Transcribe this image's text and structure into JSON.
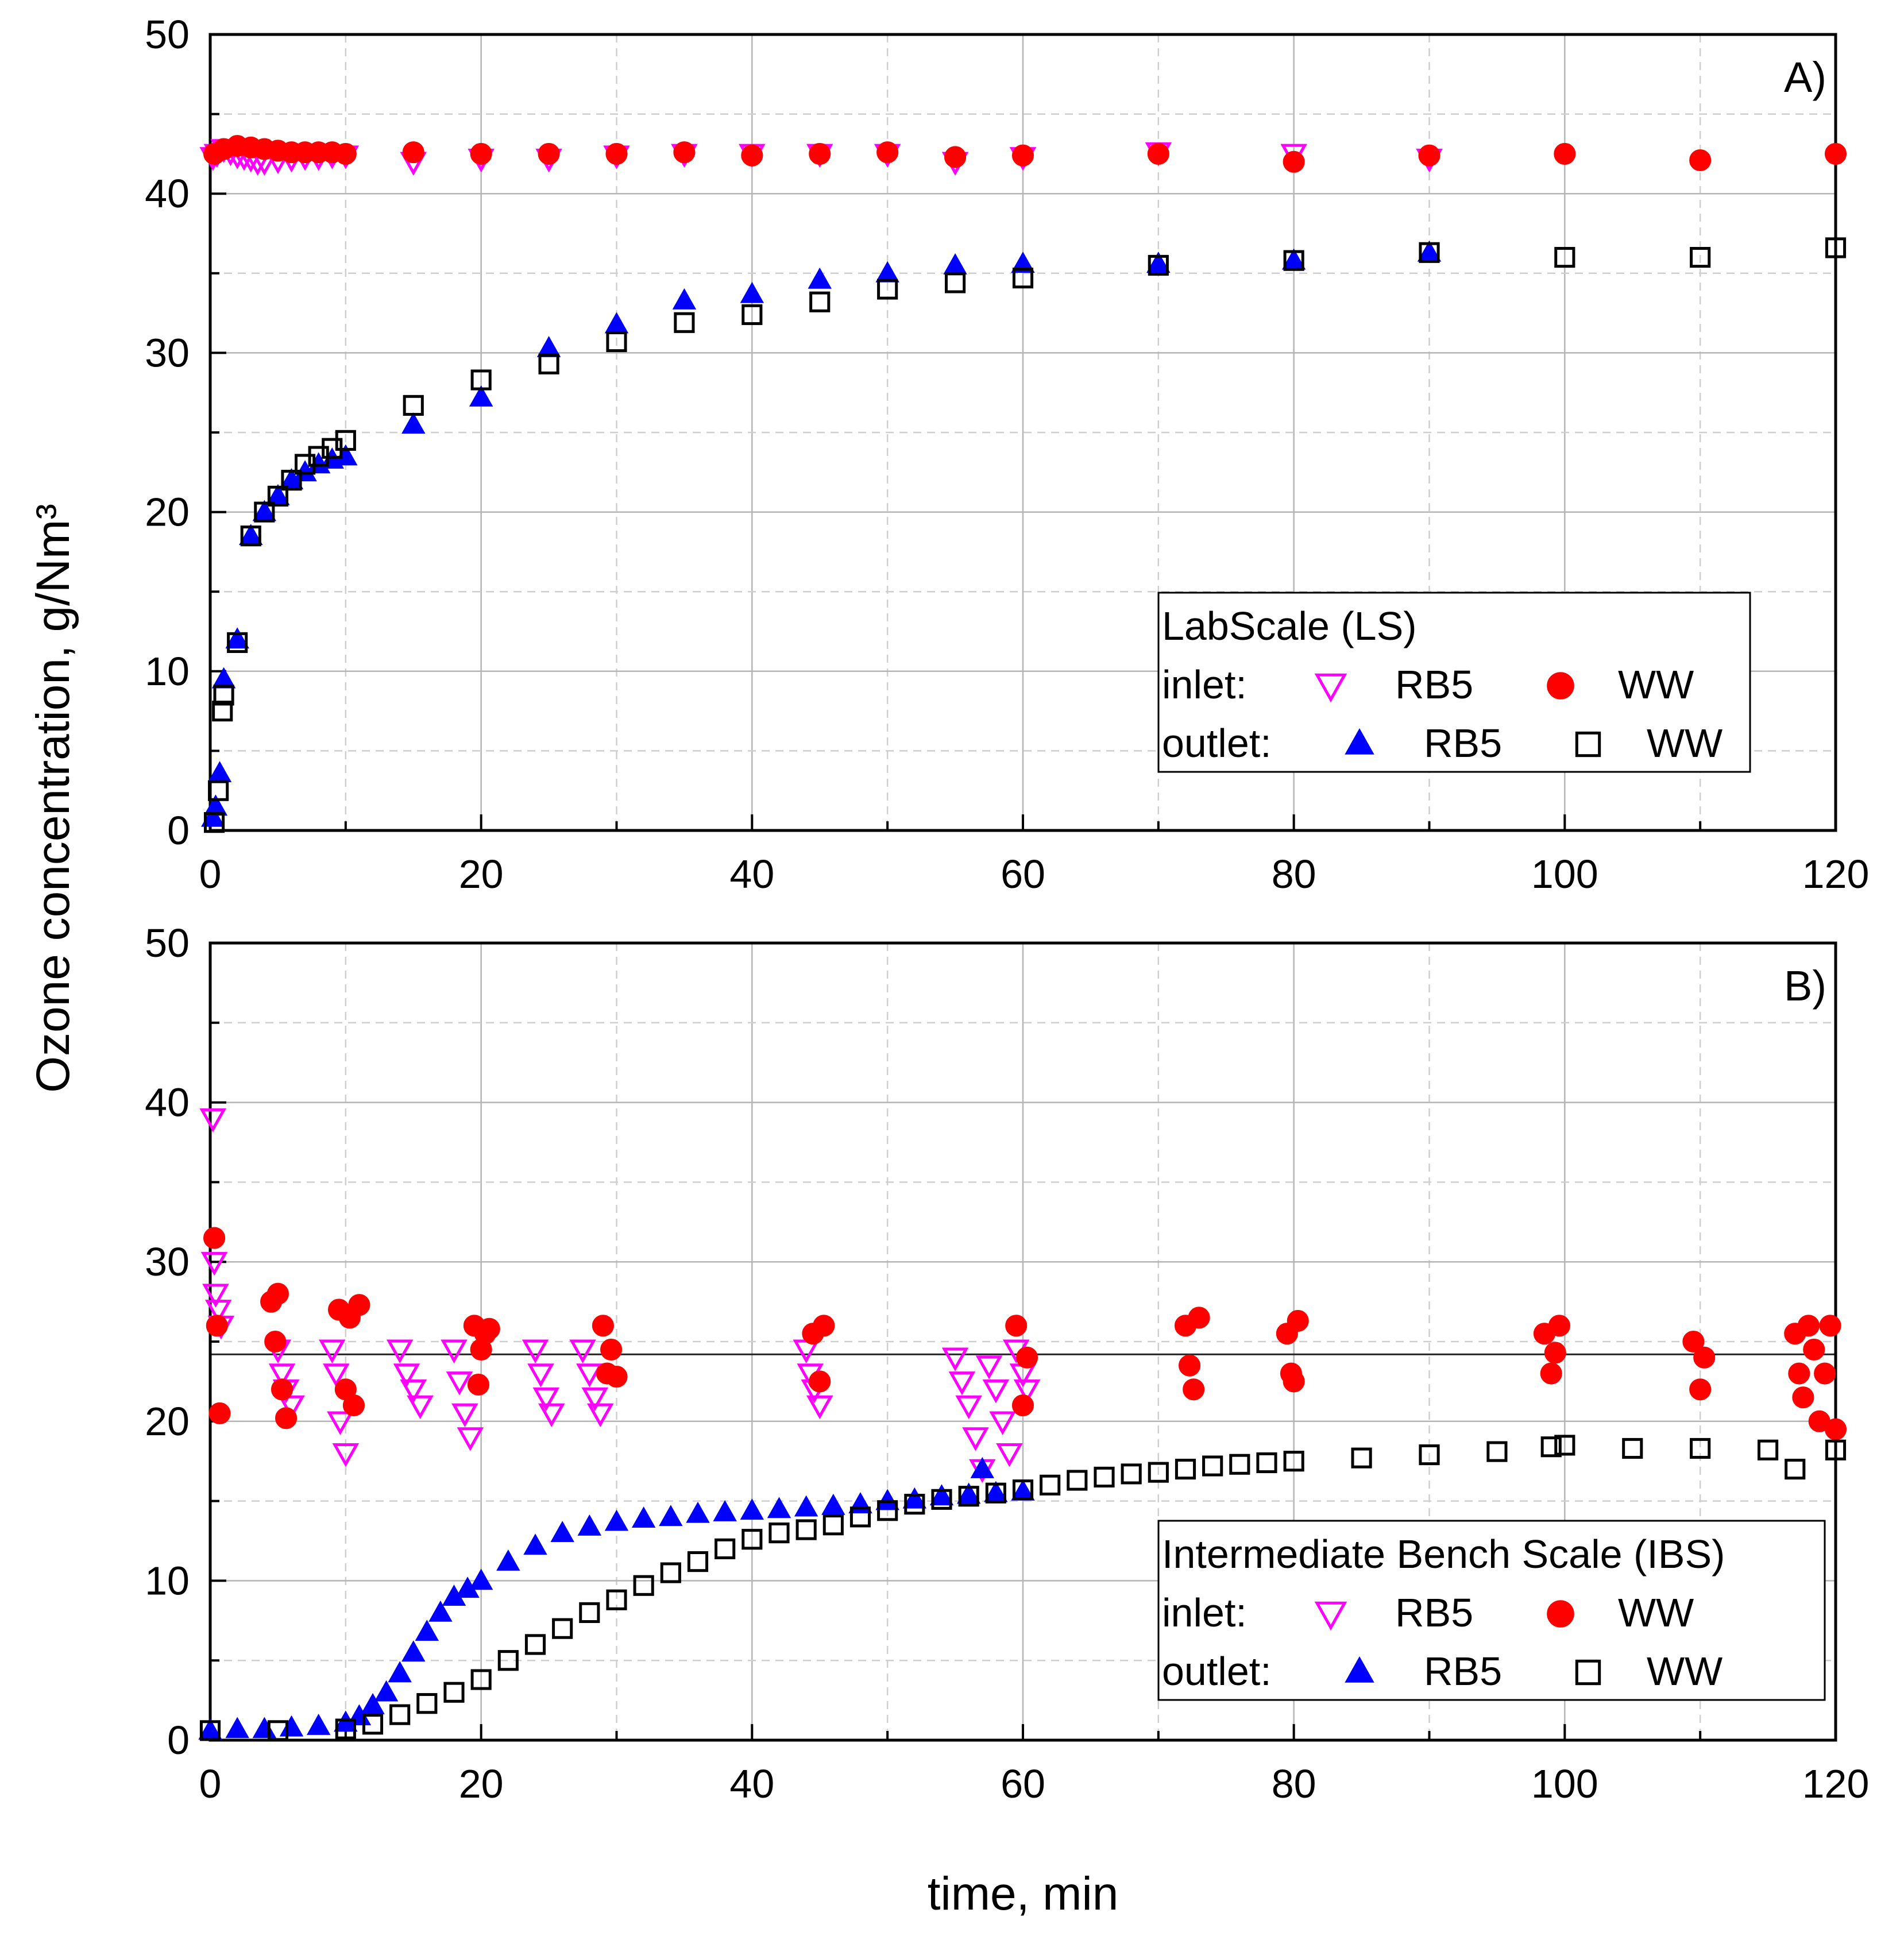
{
  "chart_data": [
    {
      "type": "scatter",
      "panel_label": "A)",
      "xlabel": "",
      "ylabel": "Ozone concentration, g/Nm³",
      "xlim": [
        0,
        120
      ],
      "ylim": [
        0,
        50
      ],
      "xticks": [
        "0",
        "20",
        "40",
        "60",
        "80",
        "100",
        "120"
      ],
      "yticks": [
        "0",
        "10",
        "20",
        "30",
        "40",
        "50"
      ],
      "grid": true,
      "legend": {
        "position": "center-right",
        "title": "LabScale (LS)",
        "inlet_label": "inlet:",
        "outlet_label": "outlet:",
        "series_names": [
          "RB5",
          "WW",
          "RB5",
          "WW"
        ]
      },
      "series": [
        {
          "name": "inlet RB5",
          "marker": "triangle-down-open",
          "color": "#ff00ff",
          "x": [
            0.2,
            0.5,
            1,
            1.5,
            2,
            2.5,
            3,
            3.5,
            4,
            5,
            6,
            7,
            8,
            9,
            10,
            15,
            20,
            25,
            30,
            35,
            40,
            45,
            50,
            55,
            60,
            70,
            80,
            90
          ],
          "y": [
            42.3,
            42.5,
            42.8,
            42.6,
            42.4,
            42.3,
            42.2,
            42.0,
            42.0,
            42.1,
            42.2,
            42.3,
            42.3,
            42.4,
            42.4,
            42.0,
            42.2,
            42.2,
            42.4,
            42.5,
            42.5,
            42.5,
            42.5,
            42.0,
            42.3,
            42.6,
            42.5,
            42.2
          ]
        },
        {
          "name": "inlet WW",
          "marker": "circle",
          "color": "#ff0000",
          "x": [
            0.3,
            1,
            2,
            3,
            4,
            5,
            6,
            7,
            8,
            9,
            10,
            15,
            20,
            25,
            30,
            35,
            40,
            45,
            50,
            55,
            60,
            70,
            80,
            90,
            100,
            110,
            120
          ],
          "y": [
            42.5,
            42.8,
            43.0,
            42.9,
            42.8,
            42.7,
            42.6,
            42.6,
            42.6,
            42.6,
            42.5,
            42.6,
            42.5,
            42.5,
            42.5,
            42.6,
            42.4,
            42.5,
            42.6,
            42.3,
            42.4,
            42.5,
            42.0,
            42.4,
            42.5,
            42.1,
            42.5
          ]
        },
        {
          "name": "outlet RB5",
          "marker": "triangle-up",
          "color": "#0000ff",
          "x": [
            0.2,
            0.4,
            0.7,
            1,
            2,
            3,
            4,
            5,
            6,
            7,
            8,
            9,
            10,
            15,
            20,
            25,
            30,
            35,
            40,
            45,
            50,
            55,
            60,
            70,
            80,
            90
          ],
          "y": [
            0.8,
            1.5,
            3.6,
            9.5,
            12.0,
            18.5,
            20.0,
            21.0,
            22.0,
            22.5,
            23.0,
            23.3,
            23.5,
            25.5,
            27.2,
            30.3,
            31.8,
            33.3,
            33.7,
            34.6,
            35.0,
            35.5,
            35.6,
            35.6,
            35.8,
            36.3
          ]
        },
        {
          "name": "outlet WW",
          "marker": "square-open",
          "color": "#000000",
          "x": [
            0.3,
            0.6,
            0.9,
            1,
            2,
            3,
            4,
            5,
            6,
            7,
            8,
            9,
            10,
            15,
            20,
            25,
            30,
            35,
            40,
            45,
            50,
            55,
            60,
            70,
            80,
            90,
            100,
            110,
            120
          ],
          "y": [
            0.5,
            2.5,
            7.5,
            8.5,
            11.8,
            18.5,
            20.0,
            21.0,
            22.0,
            23.0,
            23.5,
            24.0,
            24.5,
            26.7,
            28.3,
            29.3,
            30.7,
            31.9,
            32.4,
            33.2,
            34.0,
            34.4,
            34.7,
            35.5,
            35.8,
            36.3,
            36.0,
            36.0,
            36.6
          ]
        }
      ]
    },
    {
      "type": "scatter",
      "panel_label": "B)",
      "xlabel": "time, min",
      "ylabel": "Ozone concentration, g/Nm³",
      "xlim": [
        0,
        120
      ],
      "ylim": [
        0,
        50
      ],
      "xticks": [
        "0",
        "20",
        "40",
        "60",
        "80",
        "100",
        "120"
      ],
      "yticks": [
        "0",
        "10",
        "20",
        "30",
        "40",
        "50"
      ],
      "grid": true,
      "reference_line_y": 24.2,
      "legend": {
        "position": "lower-right",
        "title": "Intermediate Bench Scale (IBS)",
        "inlet_label": "inlet:",
        "outlet_label": "outlet:",
        "series_names": [
          "RB5",
          "WW",
          "RB5",
          "WW"
        ]
      },
      "series": [
        {
          "name": "inlet RB5",
          "marker": "triangle-down-open",
          "color": "#ff00ff",
          "x": [
            0.2,
            0.3,
            0.4,
            0.6,
            0.8,
            5,
            5.3,
            5.6,
            6,
            9,
            9.3,
            9.6,
            10,
            14,
            14.5,
            15,
            15.5,
            18,
            18.4,
            18.8,
            19.2,
            24,
            24.4,
            24.8,
            25.2,
            27.5,
            28,
            28.4,
            28.8,
            44,
            44.3,
            44.6,
            45,
            55,
            55.5,
            56,
            56.5,
            57,
            57.5,
            58,
            58.5,
            59,
            59.5,
            60,
            60.3
          ],
          "y": [
            39.0,
            30.0,
            28.0,
            27.0,
            26.0,
            24.5,
            23.0,
            22.0,
            21.0,
            24.5,
            23.0,
            20.0,
            18.0,
            24.5,
            23.0,
            22.0,
            21.0,
            24.5,
            22.5,
            20.5,
            19.0,
            24.5,
            23.0,
            21.5,
            20.5,
            24.5,
            23.0,
            21.5,
            20.5,
            24.5,
            23.0,
            22.0,
            21.0,
            24.0,
            22.5,
            21.0,
            19.0,
            17.0,
            23.5,
            22.0,
            20.0,
            18.0,
            24.5,
            23.0,
            22.0
          ]
        },
        {
          "name": "inlet WW",
          "marker": "circle",
          "color": "#ff0000",
          "x": [
            0.3,
            0.5,
            0.7,
            4.5,
            4.8,
            5,
            5.3,
            5.6,
            9.5,
            10,
            10.3,
            10.6,
            11,
            19.5,
            19.8,
            20,
            20.3,
            20.6,
            29,
            29.3,
            29.6,
            30,
            44.5,
            45,
            45.3,
            59.5,
            60,
            60.3,
            72,
            72.3,
            72.6,
            73,
            79.5,
            79.8,
            80,
            80.3,
            98.5,
            99,
            99.3,
            99.6,
            109.5,
            110,
            110.3,
            117,
            117.3,
            117.6,
            118,
            118.4,
            118.8,
            119.2,
            119.6,
            120
          ],
          "y": [
            31.5,
            26.0,
            20.5,
            27.5,
            25.0,
            28.0,
            22.0,
            20.2,
            27.0,
            22.0,
            26.5,
            21.0,
            27.3,
            26.0,
            22.3,
            24.5,
            25.5,
            25.8,
            26.0,
            23.0,
            24.5,
            22.8,
            25.5,
            22.5,
            26.0,
            26.0,
            21.0,
            24.0,
            26.0,
            23.5,
            22.0,
            26.5,
            25.5,
            23.0,
            22.5,
            26.3,
            25.5,
            23.0,
            24.3,
            26.0,
            25.0,
            22.0,
            24.0,
            25.5,
            23.0,
            21.5,
            26.0,
            24.5,
            20.0,
            23.0,
            26.0,
            19.5
          ]
        },
        {
          "name": "outlet RB5",
          "marker": "triangle-up",
          "color": "#0000ff",
          "x": [
            0,
            2,
            4,
            6,
            8,
            10,
            11,
            12,
            13,
            14,
            15,
            16,
            17,
            18,
            19,
            20,
            22,
            24,
            26,
            28,
            30,
            32,
            34,
            36,
            38,
            40,
            42,
            44,
            46,
            48,
            50,
            52,
            54,
            56,
            57,
            58,
            60
          ],
          "y": [
            0.6,
            0.7,
            0.7,
            0.8,
            0.9,
            1.1,
            1.5,
            2.2,
            3.0,
            4.2,
            5.5,
            6.8,
            8.0,
            9.0,
            9.5,
            10.0,
            11.2,
            12.2,
            13.0,
            13.4,
            13.7,
            13.9,
            14.0,
            14.2,
            14.3,
            14.4,
            14.5,
            14.6,
            14.7,
            14.8,
            15.0,
            15.1,
            15.3,
            15.4,
            17.0,
            15.5,
            15.6
          ]
        },
        {
          "name": "outlet WW",
          "marker": "square-open",
          "color": "#000000",
          "x": [
            0,
            5,
            10,
            12,
            14,
            16,
            18,
            20,
            22,
            24,
            26,
            28,
            30,
            32,
            34,
            36,
            38,
            40,
            42,
            44,
            46,
            48,
            50,
            52,
            54,
            56,
            58,
            60,
            62,
            64,
            66,
            68,
            70,
            72,
            74,
            76,
            78,
            80,
            85,
            90,
            95,
            99,
            100,
            105,
            110,
            115,
            117,
            120
          ],
          "y": [
            0.6,
            0.6,
            0.7,
            1.0,
            1.6,
            2.3,
            3.0,
            3.8,
            5.0,
            6.0,
            7.0,
            8.0,
            8.8,
            9.7,
            10.5,
            11.2,
            12.0,
            12.6,
            13.0,
            13.2,
            13.5,
            14.0,
            14.4,
            14.8,
            15.1,
            15.3,
            15.5,
            15.7,
            16.0,
            16.3,
            16.5,
            16.7,
            16.8,
            17.0,
            17.2,
            17.3,
            17.4,
            17.5,
            17.7,
            17.9,
            18.1,
            18.4,
            18.5,
            18.3,
            18.3,
            18.2,
            17.0,
            18.2
          ]
        }
      ]
    }
  ]
}
